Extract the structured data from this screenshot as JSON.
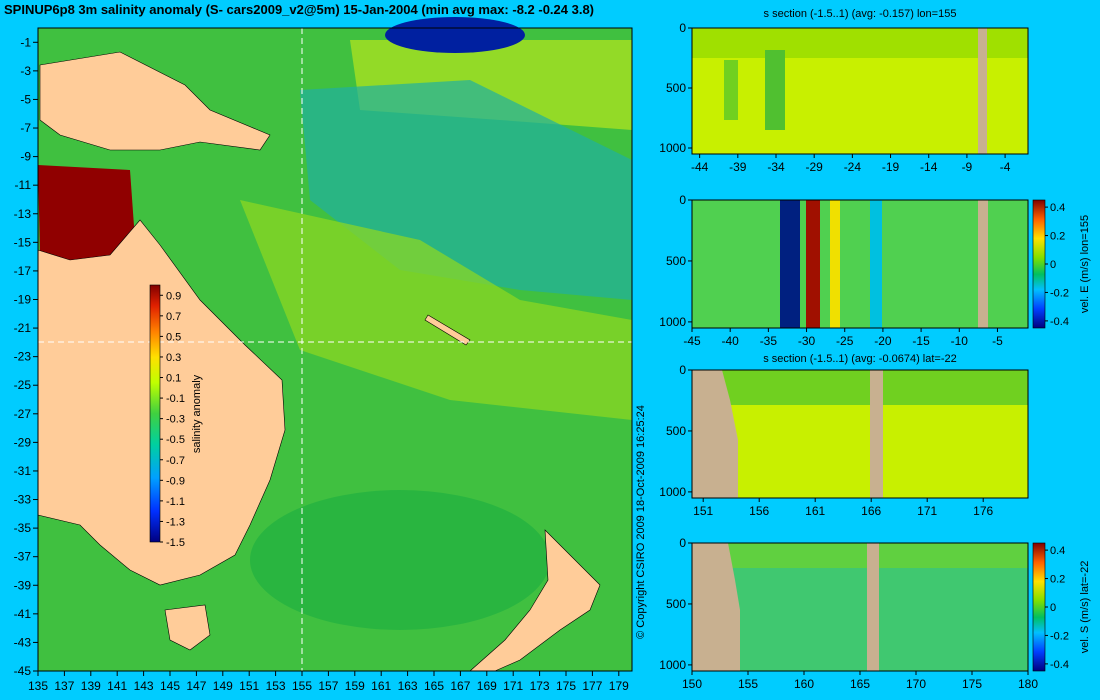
{
  "page": {
    "title": "SPINUP6p8 3m salinity anomaly (S- cars2009_v2@5m) 15-Jan-2004 (min avg max: -8.2 -0.24 3.8)",
    "copyright": "© Copyright CSIRO 2009  18-Oct-2009 16:25:24"
  },
  "chart_data": [
    {
      "type": "heatmap",
      "name": "map",
      "x_ticks": [
        135,
        137,
        139,
        141,
        143,
        145,
        147,
        149,
        151,
        153,
        155,
        157,
        159,
        161,
        163,
        165,
        167,
        169,
        171,
        173,
        175,
        177,
        179
      ],
      "y_ticks": [
        -1,
        -3,
        -5,
        -7,
        -9,
        -11,
        -13,
        -15,
        -17,
        -19,
        -21,
        -23,
        -25,
        -27,
        -29,
        -31,
        -33,
        -35,
        -37,
        -39,
        -41,
        -43,
        -45
      ],
      "xlim": [
        135,
        180
      ],
      "ylim": [
        -45,
        0
      ],
      "section_lon": 155,
      "section_lat": -22,
      "colorbar": {
        "label": "salinity anomaly",
        "ticks": [
          "0.9",
          "0.7",
          "0.5",
          "0.3",
          "0.1",
          "-0.1",
          "-0.3",
          "-0.5",
          "-0.7",
          "-0.9",
          "-1.1",
          "-1.3",
          "-1.5"
        ],
        "range": [
          -1.5,
          1.0
        ]
      }
    },
    {
      "type": "heatmap",
      "name": "section-1",
      "title": "s section (-1.5..1) (avg: -0.157) lon=155",
      "x_ticks": [
        "-44",
        "-39",
        "-34",
        "-29",
        "-24",
        "-19",
        "-14",
        "-9",
        "-4"
      ],
      "x_values": [
        -44,
        -39,
        -34,
        -29,
        -24,
        -19,
        -14,
        -9,
        -4
      ],
      "xlim": [
        -45,
        -1
      ],
      "y_ticks": [
        "0",
        "500",
        "1000"
      ],
      "ylim": [
        1050,
        0
      ]
    },
    {
      "type": "heatmap",
      "name": "section-2",
      "x_ticks": [
        "-45",
        "-40",
        "-35",
        "-30",
        "-25",
        "-20",
        "-15",
        "-10",
        "-5"
      ],
      "x_values": [
        -45,
        -40,
        -35,
        -30,
        -25,
        -20,
        -15,
        -10,
        -5
      ],
      "xlim": [
        -45,
        -1
      ],
      "y_ticks": [
        "0",
        "500",
        "1000"
      ],
      "ylim": [
        1050,
        0
      ],
      "colorbar": {
        "label": "vel. E (m/s) lon=155",
        "ticks": [
          "0.4",
          "0.2",
          "0",
          "-0.2",
          "-0.4"
        ],
        "range": [
          -0.45,
          0.45
        ]
      }
    },
    {
      "type": "heatmap",
      "name": "section-3",
      "title": "s section (-1.5..1) (avg: -0.0674) lat=-22",
      "x_ticks": [
        "151",
        "156",
        "161",
        "166",
        "171",
        "176"
      ],
      "x_values": [
        151,
        156,
        161,
        166,
        171,
        176
      ],
      "xlim": [
        150,
        180
      ],
      "y_ticks": [
        "0",
        "500",
        "1000"
      ],
      "ylim": [
        1050,
        0
      ]
    },
    {
      "type": "heatmap",
      "name": "section-4",
      "x_ticks": [
        "150",
        "155",
        "160",
        "165",
        "170",
        "175",
        "180"
      ],
      "x_values": [
        150,
        155,
        160,
        165,
        170,
        175,
        180
      ],
      "xlim": [
        150,
        180
      ],
      "y_ticks": [
        "0",
        "500",
        "1000"
      ],
      "ylim": [
        1050,
        0
      ],
      "colorbar": {
        "label": "vel. S (m/s) lat=-22",
        "ticks": [
          "0.4",
          "0.2",
          "0",
          "-0.2",
          "-0.4"
        ],
        "range": [
          -0.45,
          0.45
        ]
      }
    }
  ]
}
